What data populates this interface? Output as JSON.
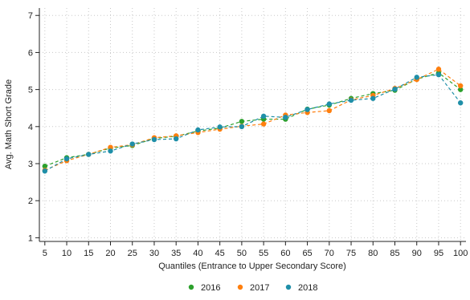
{
  "chart_data": {
    "type": "line",
    "xlabel": "Quantiles (Entrance to Upper Secondary Score)",
    "ylabel": "Avg. Math Short Grade",
    "x": [
      5,
      10,
      15,
      20,
      25,
      30,
      35,
      40,
      45,
      50,
      55,
      60,
      65,
      70,
      75,
      80,
      85,
      90,
      95,
      100
    ],
    "xticks": [
      "5",
      "10",
      "15",
      "20",
      "25",
      "30",
      "35",
      "40",
      "45",
      "50",
      "55",
      "60",
      "65",
      "70",
      "75",
      "80",
      "85",
      "90",
      "95",
      "100"
    ],
    "yticks": [
      "1",
      "2",
      "3",
      "4",
      "5",
      "6",
      "7"
    ],
    "xlim": [
      3.75,
      101.25
    ],
    "ylim": [
      0.9,
      7.2
    ],
    "grid": true,
    "grid_style": "dotted",
    "legend_position": "bottom",
    "series": [
      {
        "name": "2016",
        "color": "#2ca02c",
        "values": [
          2.93,
          3.16,
          3.25,
          3.42,
          3.49,
          3.68,
          3.74,
          3.88,
          3.96,
          4.14,
          4.2,
          4.2,
          4.47,
          4.58,
          4.76,
          4.89,
          4.98,
          5.28,
          5.45,
          5.0
        ]
      },
      {
        "name": "2017",
        "color": "#ff7f0e",
        "values": [
          2.82,
          3.08,
          3.25,
          3.44,
          3.51,
          3.7,
          3.75,
          3.84,
          3.93,
          4.01,
          4.07,
          4.31,
          4.38,
          4.43,
          4.72,
          4.84,
          5.03,
          5.27,
          5.55,
          5.1
        ]
      },
      {
        "name": "2018",
        "color": "#1f8fa8",
        "values": [
          2.8,
          3.13,
          3.25,
          3.34,
          3.53,
          3.65,
          3.67,
          3.91,
          3.99,
          4.0,
          4.28,
          4.25,
          4.46,
          4.61,
          4.71,
          4.76,
          5.01,
          5.33,
          5.4,
          4.64
        ]
      }
    ]
  }
}
